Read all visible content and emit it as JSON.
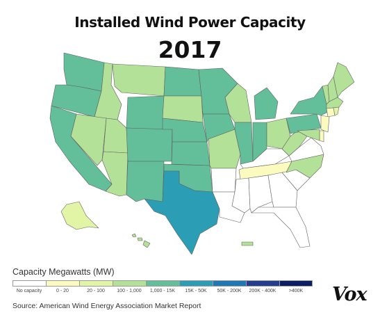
{
  "title": "Installed Wind Power Capacity",
  "year": "2017",
  "legend": {
    "title": "Capacity Megawatts (MW)",
    "bins": [
      {
        "label": "No capacity",
        "color": "#ffffff"
      },
      {
        "label": "0 - 20",
        "color": "#fbfbc0"
      },
      {
        "label": "20 - 100",
        "color": "#e2f5a6"
      },
      {
        "label": "100 - 1,000",
        "color": "#b3e197"
      },
      {
        "label": "1,000 - 15K",
        "color": "#63bf9a"
      },
      {
        "label": "15K - 50K",
        "color": "#2b9db4"
      },
      {
        "label": "50K - 200K",
        "color": "#1f78b4"
      },
      {
        "label": "200K - 400K",
        "color": "#243d8e"
      },
      {
        "label": ">400K",
        "color": "#0b1d63"
      }
    ]
  },
  "states": {
    "WA": 4,
    "OR": 4,
    "CA": 4,
    "ID": 3,
    "NV": 3,
    "MT": 3,
    "WY": 4,
    "UT": 3,
    "AZ": 3,
    "CO": 4,
    "NM": 4,
    "ND": 4,
    "SD": 3,
    "NE": 4,
    "KS": 4,
    "OK": 4,
    "TX": 5,
    "MN": 4,
    "IA": 4,
    "MO": 3,
    "AR": 0,
    "LA": 0,
    "WI": 3,
    "IL": 4,
    "IN": 4,
    "MI": 4,
    "OH": 3,
    "KY": 0,
    "TN": 1,
    "MS": 0,
    "AL": 0,
    "GA": 0,
    "FL": 0,
    "SC": 0,
    "NC": 3,
    "VA": 0,
    "WV": 3,
    "PA": 4,
    "NY": 4,
    "VT": 3,
    "NH": 3,
    "ME": 3,
    "MA": 3,
    "CT": 1,
    "RI": 2,
    "NJ": 1,
    "DE": 1,
    "MD": 3,
    "AK": 2,
    "HI": 3
  },
  "source": "Source: American Wind Energy Association Market Report",
  "logo": "Vox"
}
